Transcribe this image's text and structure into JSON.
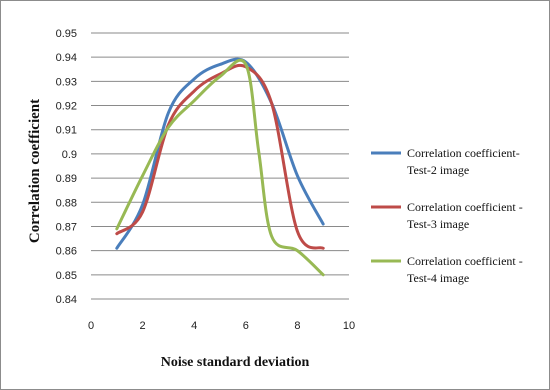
{
  "chart_data": {
    "type": "line",
    "xlabel": "Noise standard deviation",
    "ylabel": "Correlation coefficient",
    "xlim": [
      0,
      10
    ],
    "ylim": [
      0.84,
      0.95
    ],
    "x_ticks": [
      0,
      2,
      4,
      6,
      8,
      10
    ],
    "y_ticks": [
      0.84,
      0.85,
      0.86,
      0.87,
      0.88,
      0.89,
      0.9,
      0.91,
      0.92,
      0.93,
      0.94,
      0.95
    ],
    "grid": "horizontal",
    "legend_position": "right",
    "series": [
      {
        "name_lines": [
          "Correlation coefficient-",
          "Test-2 image"
        ],
        "color": "#4a7ebb",
        "x": [
          1,
          2,
          3,
          4,
          5,
          6,
          7,
          8,
          9
        ],
        "values": [
          0.861,
          0.879,
          0.917,
          0.931,
          0.937,
          0.938,
          0.921,
          0.891,
          0.871
        ]
      },
      {
        "name_lines": [
          "Correlation coefficient -",
          "Test-3 image"
        ],
        "color": "#be4b48",
        "x": [
          1,
          2,
          3,
          4,
          5,
          6,
          7,
          8,
          9
        ],
        "values": [
          0.867,
          0.876,
          0.912,
          0.926,
          0.933,
          0.936,
          0.921,
          0.868,
          0.861
        ]
      },
      {
        "name_lines": [
          "Correlation coefficient -",
          "Test-4 image"
        ],
        "color": "#98b954",
        "x": [
          1,
          2,
          3,
          4,
          5,
          6,
          6.5,
          7,
          8,
          9
        ],
        "values": [
          0.869,
          0.891,
          0.911,
          0.922,
          0.932,
          0.937,
          0.901,
          0.866,
          0.86,
          0.85
        ]
      }
    ]
  }
}
